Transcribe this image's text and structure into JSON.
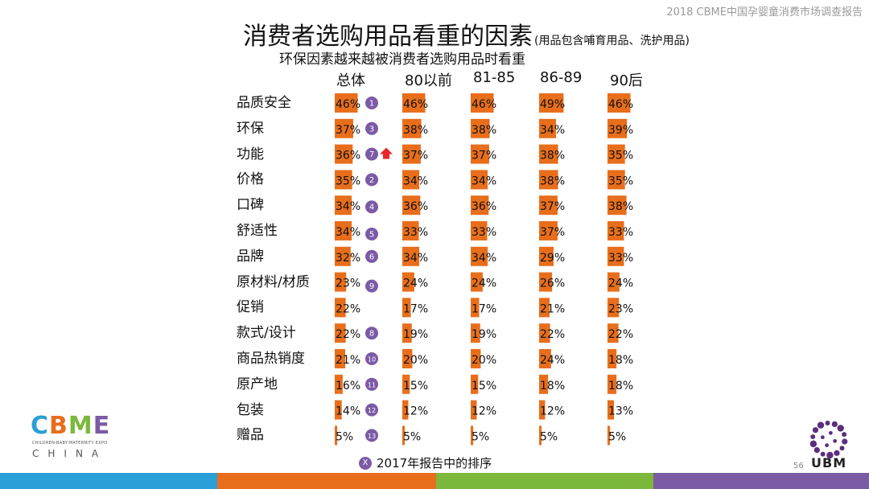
{
  "header": {
    "report_title": "2018 CBME中国孕婴童消费市场调查报告"
  },
  "title": {
    "main": "消费者选购用品看重的因素",
    "note": "(用品包含哺育用品、洗护用品)"
  },
  "subtitle": "环保因素越来越被消费者选购用品时看重",
  "footnote": {
    "badge": "X",
    "text": "2017年报告中的排序"
  },
  "page_number": "56",
  "logos": {
    "ubm": "UBM",
    "cbme_letters": [
      "C",
      "B",
      "M",
      "E"
    ],
    "cbme_tagline": "CHILDREN-BABY-MATERNITY EXPO",
    "cbme_country": "CHINA"
  },
  "colors": {
    "bar": "#e86e1c",
    "badge": "#7b5aa6",
    "arrow": "#e8262b",
    "stripes": [
      "#2a9fd8",
      "#e86e1c",
      "#7cb83c",
      "#7b5aa6"
    ],
    "cbme_letters": [
      "#2a9fd8",
      "#e86e1c",
      "#7cb83c",
      "#7b5aa6"
    ]
  },
  "chart_data": {
    "type": "bar",
    "orientation": "horizontal",
    "value_unit": "%",
    "categories": [
      "品质安全",
      "环保",
      "功能",
      "价格",
      "口碑",
      "舒适性",
      "品牌",
      "原材料/材质",
      "促销",
      "款式/设计",
      "商品热销度",
      "原产地",
      "包装",
      "赠品"
    ],
    "series": [
      {
        "name": "总体",
        "values": [
          46,
          37,
          36,
          35,
          34,
          34,
          32,
          23,
          22,
          22,
          21,
          16,
          14,
          5
        ]
      },
      {
        "name": "80以前",
        "values": [
          46,
          38,
          37,
          34,
          36,
          33,
          34,
          24,
          17,
          19,
          20,
          15,
          12,
          5
        ]
      },
      {
        "name": "81-85",
        "values": [
          46,
          38,
          37,
          34,
          36,
          33,
          34,
          24,
          17,
          19,
          20,
          15,
          12,
          5
        ]
      },
      {
        "name": "86-89",
        "values": [
          49,
          34,
          38,
          38,
          37,
          37,
          29,
          26,
          21,
          22,
          24,
          18,
          12,
          5
        ]
      },
      {
        "name": "90后",
        "values": [
          46,
          39,
          35,
          35,
          38,
          33,
          33,
          24,
          23,
          22,
          18,
          18,
          13,
          5
        ]
      }
    ],
    "rank_2017": [
      "1",
      "3",
      "7",
      "2",
      "4",
      "5",
      "6",
      "9",
      "",
      "8",
      "10",
      "11",
      "12",
      "13"
    ],
    "rank_up_marker": [
      "",
      "",
      "up",
      "",
      "",
      "",
      "",
      "",
      "",
      "",
      "",
      "",
      "",
      ""
    ]
  }
}
